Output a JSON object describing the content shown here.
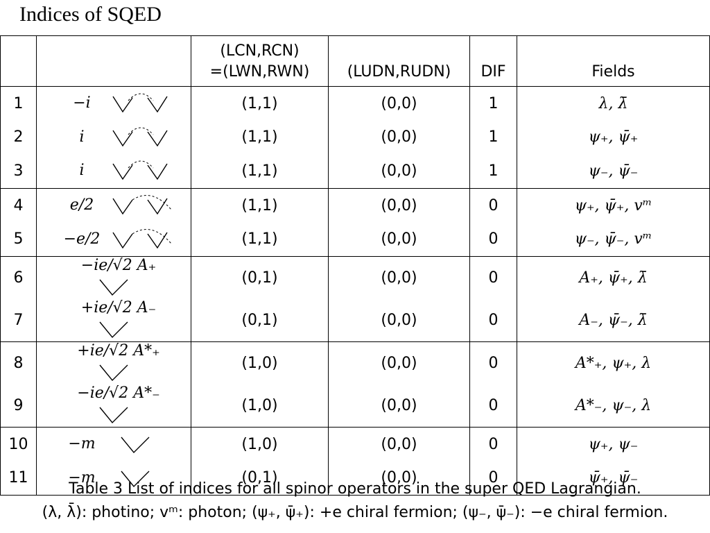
{
  "title": "Indices of  SQED",
  "table": {
    "headers": [
      "",
      "",
      "(LCN,RCN)",
      "=(LWN,RWN)",
      "(LUDN,RUDN)",
      "DIF",
      "Fields"
    ],
    "rows": [
      {
        "num": "1",
        "coef": "−i",
        "lcn": "(1,1)",
        "ludn": "(0,0)",
        "dif": "1",
        "fields": "λ, λ̄"
      },
      {
        "num": "2",
        "coef": "i",
        "lcn": "(1,1)",
        "ludn": "(0,0)",
        "dif": "1",
        "fields": "ψ₊, ψ̄₊"
      },
      {
        "num": "3",
        "coef": "i",
        "lcn": "(1,1)",
        "ludn": "(0,0)",
        "dif": "1",
        "fields": "ψ₋, ψ̄₋"
      },
      {
        "num": "4",
        "coef": "e/2",
        "lcn": "(1,1)",
        "ludn": "(0,0)",
        "dif": "0",
        "fields": "ψ₊, ψ̄₊, vᵐ"
      },
      {
        "num": "5",
        "coef": "−e/2",
        "lcn": "(1,1)",
        "ludn": "(0,0)",
        "dif": "0",
        "fields": "ψ₋, ψ̄₋, vᵐ"
      },
      {
        "num": "6",
        "coef": "−ie/√2 A₊",
        "lcn": "(0,1)",
        "ludn": "(0,0)",
        "dif": "0",
        "fields": "A₊, ψ̄₊, λ̄"
      },
      {
        "num": "7",
        "coef": "+ie/√2 A₋",
        "lcn": "(0,1)",
        "ludn": "(0,0)",
        "dif": "0",
        "fields": "A₋, ψ̄₋, λ̄"
      },
      {
        "num": "8",
        "coef": "+ie/√2 A*₊",
        "lcn": "(1,0)",
        "ludn": "(0,0)",
        "dif": "0",
        "fields": "A*₊, ψ₊, λ"
      },
      {
        "num": "9",
        "coef": "−ie/√2 A*₋",
        "lcn": "(1,0)",
        "ludn": "(0,0)",
        "dif": "0",
        "fields": "A*₋, ψ₋, λ"
      },
      {
        "num": "10",
        "coef": "−m",
        "lcn": "(1,0)",
        "ludn": "(0,0)",
        "dif": "0",
        "fields": "ψ₊, ψ₋"
      },
      {
        "num": "11",
        "coef": "−m",
        "lcn": "(0,1)",
        "ludn": "(0,0)",
        "dif": "0",
        "fields": "ψ̄₊, ψ̄₋"
      }
    ]
  },
  "caption": {
    "line1": "Table 3  List of indices for all spinor operators in the super QED Lagrangian.",
    "line2": "(λ, λ̄): photino; vᵐ: photon; (ψ₊, ψ̄₊): +e chiral fermion; (ψ₋, ψ̄₋): −e chiral fermion."
  }
}
